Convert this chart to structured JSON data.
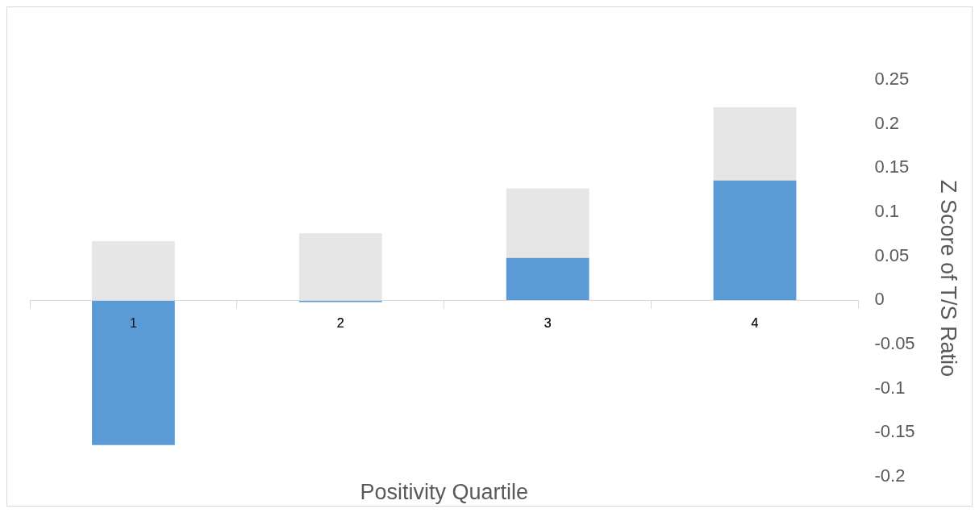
{
  "chart_data": {
    "type": "bar",
    "xlabel": "Positivity Quartile",
    "ylabel": "Z Score of T/S Ratio",
    "categories": [
      "1",
      "2",
      "3",
      "4"
    ],
    "stacked": true,
    "series": [
      {
        "color": "#5b9bd5",
        "values": [
          -0.164,
          -0.002,
          0.048,
          0.136
        ]
      },
      {
        "color": "#e7e6e6",
        "values": [
          0.067,
          0.076,
          0.079,
          0.083
        ]
      }
    ],
    "ylim": [
      -0.2,
      0.25
    ],
    "yticks": [
      -0.2,
      -0.15,
      -0.1,
      -0.05,
      0,
      0.05,
      0.1,
      0.15,
      0.2,
      0.25
    ],
    "grid": false,
    "legend": false
  }
}
